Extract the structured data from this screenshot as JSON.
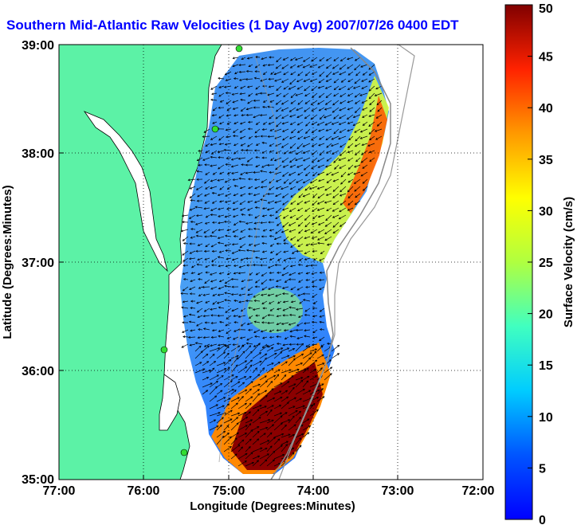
{
  "title": "Southern Mid-Atlantic Raw Velocities (1 Day Avg) 2007/07/26 0400 EDT",
  "map": {
    "xlabel": "Longitude (Degrees:Minutes)",
    "ylabel": "Latitude (Degrees:Minutes)",
    "x_ticks": [
      "77:00",
      "76:00",
      "75:00",
      "74:00",
      "73:00",
      "72:00"
    ],
    "y_ticks": [
      "39:00",
      "38:00",
      "37:00",
      "36:00",
      "35:00"
    ],
    "colors": {
      "land": "#5cf2a6",
      "water_background": "#ffffff",
      "border": "#000000"
    }
  },
  "colorbar": {
    "label": "Surface Velocity (cm/s)",
    "ticks": [
      "50",
      "45",
      "40",
      "35",
      "30",
      "25",
      "20",
      "15",
      "10",
      "5",
      "0"
    ],
    "min": 0,
    "max": 50
  }
}
